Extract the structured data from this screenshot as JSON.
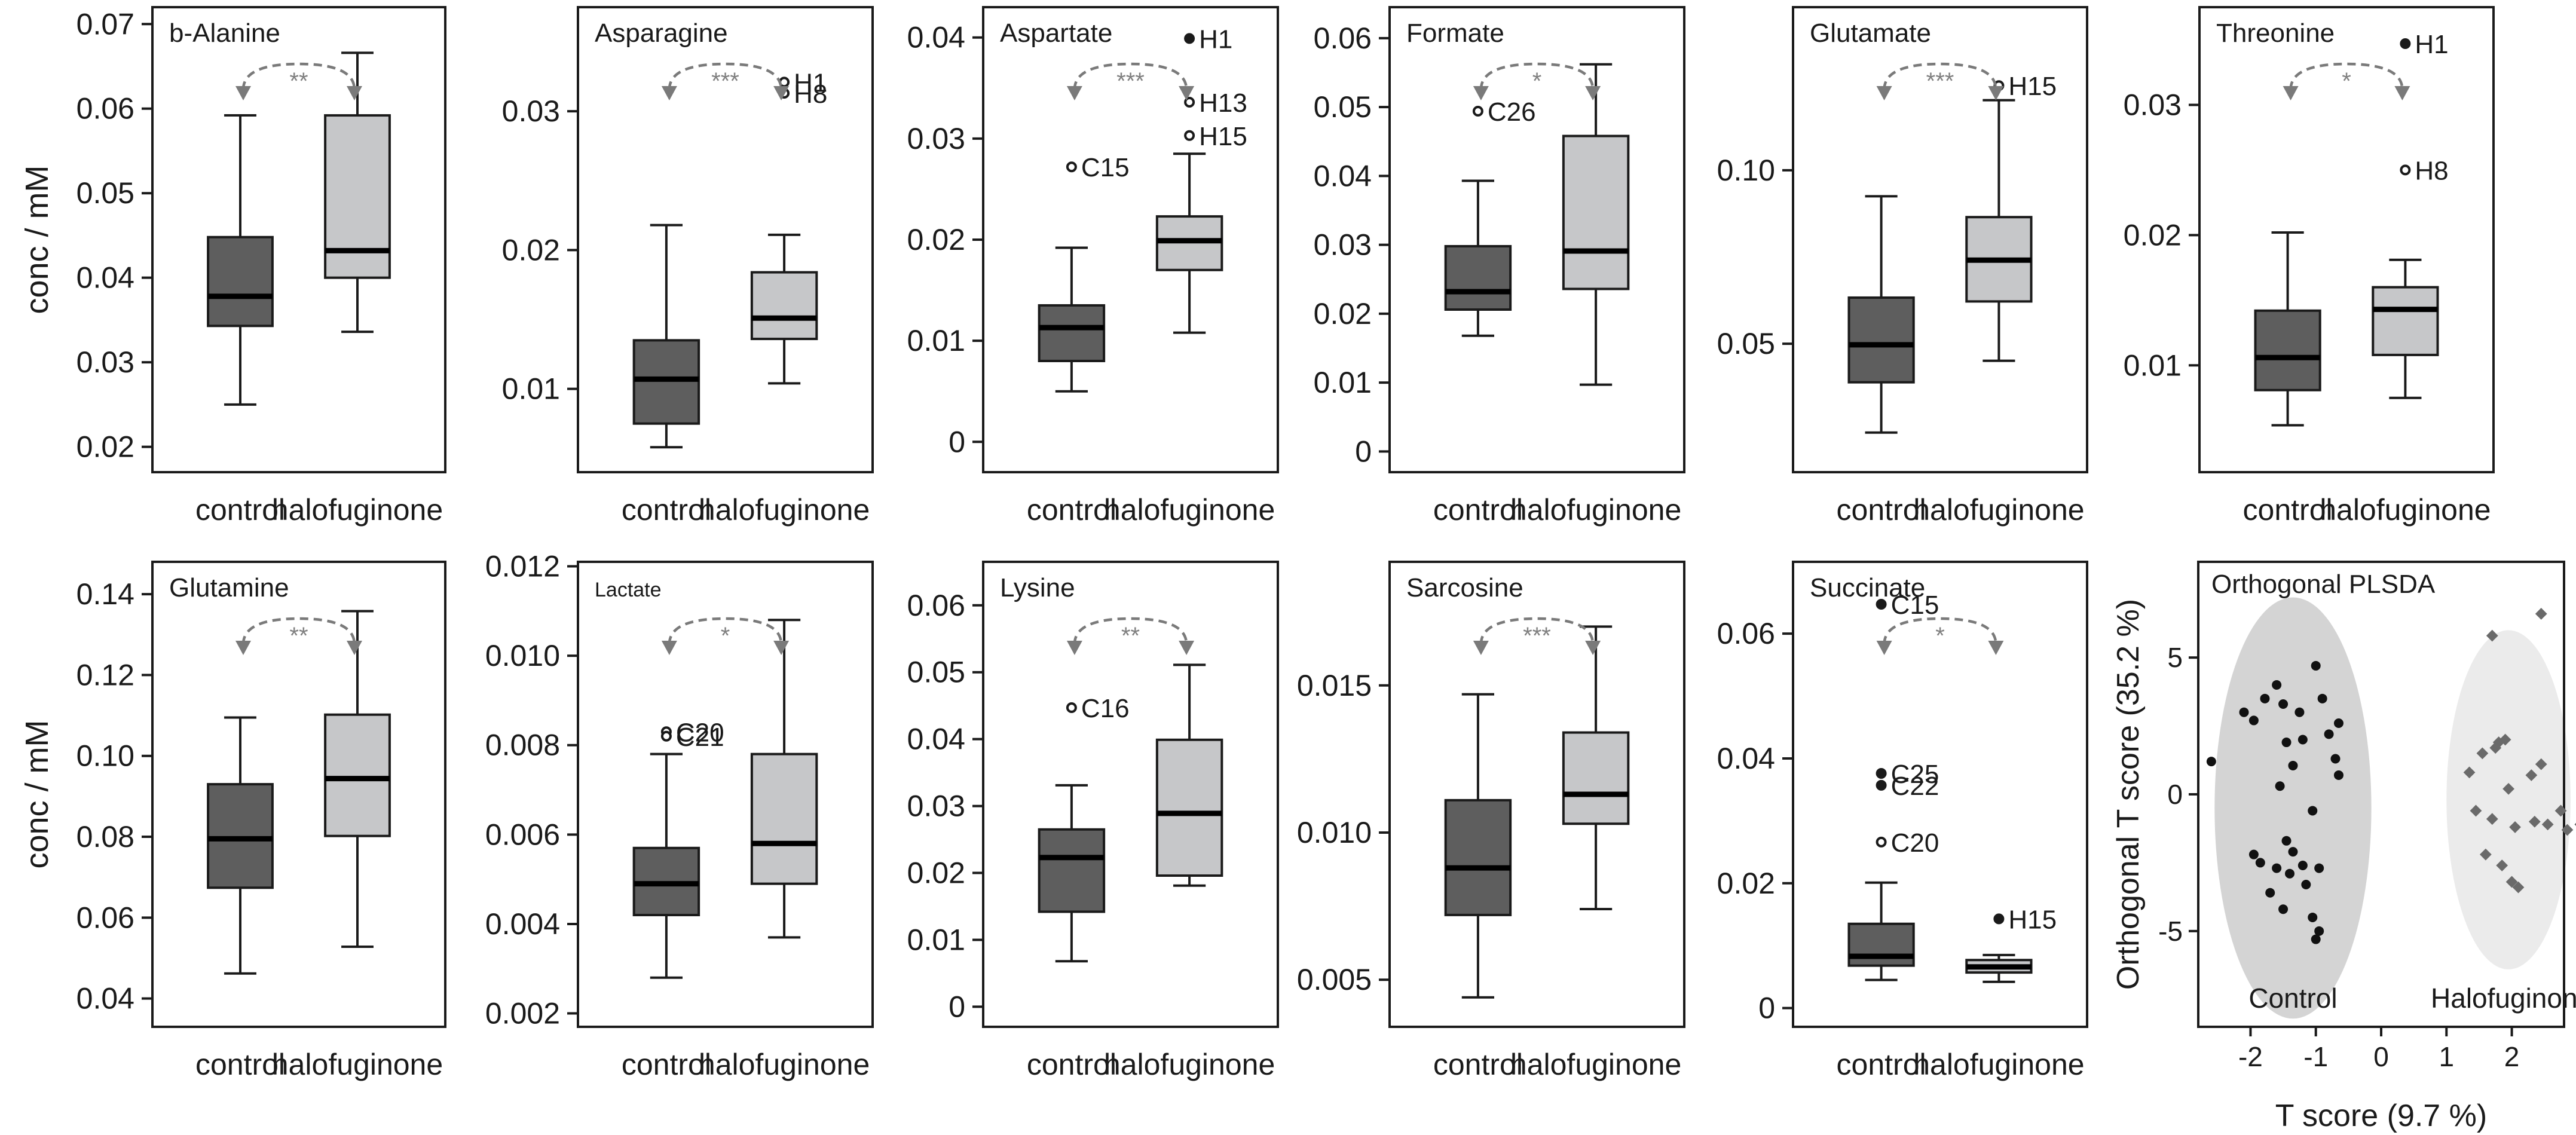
{
  "chart_data": [
    {
      "type": "box",
      "title": "b-Alanine",
      "ylabel": "conc / mM",
      "ylim": [
        0.017,
        0.072
      ],
      "yticks": [
        0.02,
        0.03,
        0.04,
        0.05,
        0.06,
        0.07
      ],
      "ytick_labels": [
        "0.02",
        "0.03",
        "0.04",
        "0.05",
        "0.06",
        "0.07"
      ],
      "categories": [
        "control",
        "halofuginone"
      ],
      "boxes": [
        {
          "min": 0.025,
          "q1": 0.0343,
          "median": 0.0378,
          "q3": 0.0448,
          "max": 0.0592
        },
        {
          "min": 0.0336,
          "q1": 0.04,
          "median": 0.0432,
          "q3": 0.0592,
          "max": 0.0666
        }
      ],
      "outliers": [],
      "significance": "**"
    },
    {
      "type": "box",
      "title": "Asparagine",
      "ylabel": "",
      "ylim": [
        0.004,
        0.0375
      ],
      "yticks": [
        0.01,
        0.02,
        0.03
      ],
      "ytick_labels": [
        "0.01",
        "0.02",
        "0.03"
      ],
      "categories": [
        "control",
        "halofuginone"
      ],
      "boxes": [
        {
          "min": 0.0058,
          "q1": 0.0075,
          "median": 0.0107,
          "q3": 0.0135,
          "max": 0.0218
        },
        {
          "min": 0.0104,
          "q1": 0.0136,
          "median": 0.0151,
          "q3": 0.0184,
          "max": 0.0211
        }
      ],
      "outliers": [
        {
          "group": 1,
          "value": 0.0321,
          "label": "H1"
        },
        {
          "group": 1,
          "value": 0.0313,
          "label": "H8"
        }
      ],
      "significance": "***"
    },
    {
      "type": "box",
      "title": "Aspartate",
      "ylabel": "",
      "ylim": [
        -0.003,
        0.043
      ],
      "yticks": [
        0,
        0.01,
        0.02,
        0.03,
        0.04
      ],
      "ytick_labels": [
        "0",
        "0.01",
        "0.02",
        "0.03",
        "0.04"
      ],
      "categories": [
        "control",
        "halofuginone"
      ],
      "boxes": [
        {
          "min": 0.005,
          "q1": 0.008,
          "median": 0.0113,
          "q3": 0.0135,
          "max": 0.0192
        },
        {
          "min": 0.0108,
          "q1": 0.017,
          "median": 0.0199,
          "q3": 0.0223,
          "max": 0.0285
        }
      ],
      "outliers": [
        {
          "group": 0,
          "value": 0.0272,
          "label": "C15"
        },
        {
          "group": 1,
          "value": 0.0399,
          "label": "H1",
          "filled": true
        },
        {
          "group": 1,
          "value": 0.0336,
          "label": "H13"
        },
        {
          "group": 1,
          "value": 0.0303,
          "label": "H15"
        }
      ],
      "significance": "***"
    },
    {
      "type": "box",
      "title": "Formate",
      "ylabel": "",
      "ylim": [
        -0.003,
        0.0645
      ],
      "yticks": [
        0,
        0.01,
        0.02,
        0.03,
        0.04,
        0.05,
        0.06
      ],
      "ytick_labels": [
        "0",
        "0.01",
        "0.02",
        "0.03",
        "0.04",
        "0.05",
        "0.06"
      ],
      "categories": [
        "control",
        "halofuginone"
      ],
      "boxes": [
        {
          "min": 0.0168,
          "q1": 0.0206,
          "median": 0.0232,
          "q3": 0.0298,
          "max": 0.0393
        },
        {
          "min": 0.0097,
          "q1": 0.0236,
          "median": 0.0291,
          "q3": 0.0458,
          "max": 0.0562
        }
      ],
      "outliers": [
        {
          "group": 0,
          "value": 0.0494,
          "label": "C26"
        }
      ],
      "significance": "*"
    },
    {
      "type": "box",
      "title": "Glutamate",
      "ylabel": "",
      "ylim": [
        0.013,
        0.147
      ],
      "yticks": [
        0.05,
        0.1
      ],
      "ytick_labels": [
        "0.05",
        "0.10"
      ],
      "categories": [
        "control",
        "halofuginone"
      ],
      "boxes": [
        {
          "min": 0.0244,
          "q1": 0.0389,
          "median": 0.0497,
          "q3": 0.0633,
          "max": 0.0925
        },
        {
          "min": 0.0451,
          "q1": 0.0622,
          "median": 0.0741,
          "q3": 0.0865,
          "max": 0.1202
        }
      ],
      "outliers": [
        {
          "group": 1,
          "value": 0.1244,
          "label": "H15"
        }
      ],
      "significance": "***"
    },
    {
      "type": "box",
      "title": "Threonine",
      "ylabel": "",
      "ylim": [
        0.0018,
        0.0375
      ],
      "yticks": [
        0.01,
        0.02,
        0.03
      ],
      "ytick_labels": [
        "0.01",
        "0.02",
        "0.03"
      ],
      "categories": [
        "control",
        "halofuginone"
      ],
      "boxes": [
        {
          "min": 0.0054,
          "q1": 0.0081,
          "median": 0.0106,
          "q3": 0.0142,
          "max": 0.0202
        },
        {
          "min": 0.0075,
          "q1": 0.0108,
          "median": 0.0143,
          "q3": 0.016,
          "max": 0.0181
        }
      ],
      "outliers": [
        {
          "group": 1,
          "value": 0.0347,
          "label": "H1",
          "filled": true
        },
        {
          "group": 1,
          "value": 0.025,
          "label": "H8"
        }
      ],
      "significance": "*"
    },
    {
      "type": "box",
      "title": "Glutamine",
      "ylabel": "conc / mM",
      "ylim": [
        0.033,
        0.148
      ],
      "yticks": [
        0.04,
        0.06,
        0.08,
        0.1,
        0.12,
        0.14
      ],
      "ytick_labels": [
        "0.04",
        "0.06",
        "0.08",
        "0.10",
        "0.12",
        "0.14"
      ],
      "categories": [
        "control",
        "halofuginone"
      ],
      "boxes": [
        {
          "min": 0.0462,
          "q1": 0.0674,
          "median": 0.0795,
          "q3": 0.093,
          "max": 0.1095
        },
        {
          "min": 0.0528,
          "q1": 0.0802,
          "median": 0.0944,
          "q3": 0.1102,
          "max": 0.1358
        }
      ],
      "outliers": [],
      "significance": "**"
    },
    {
      "type": "box",
      "title": "Lactate",
      "ylabel": "",
      "ylim": [
        0.0017,
        0.0121
      ],
      "yticks": [
        0.002,
        0.004,
        0.006,
        0.008,
        0.01,
        0.012
      ],
      "ytick_labels": [
        "0.002",
        "0.004",
        "0.006",
        "0.008",
        "0.010",
        "0.012"
      ],
      "categories": [
        "control",
        "halofuginone"
      ],
      "boxes": [
        {
          "min": 0.0028,
          "q1": 0.0042,
          "median": 0.0049,
          "q3": 0.0057,
          "max": 0.0078
        },
        {
          "min": 0.0037,
          "q1": 0.0049,
          "median": 0.0058,
          "q3": 0.0078,
          "max": 0.0108
        }
      ],
      "outliers": [
        {
          "group": 0,
          "value": 0.0083,
          "label": "C20"
        },
        {
          "group": 0,
          "value": 0.0082,
          "label": "C21"
        }
      ],
      "significance": "*"
    },
    {
      "type": "box",
      "title": "Lysine",
      "ylabel": "",
      "ylim": [
        -0.003,
        0.0665
      ],
      "yticks": [
        0,
        0.01,
        0.02,
        0.03,
        0.04,
        0.05,
        0.06
      ],
      "ytick_labels": [
        "0",
        "0.01",
        "0.02",
        "0.03",
        "0.04",
        "0.05",
        "0.06"
      ],
      "categories": [
        "control",
        "halofuginone"
      ],
      "boxes": [
        {
          "min": 0.0068,
          "q1": 0.0142,
          "median": 0.0223,
          "q3": 0.0265,
          "max": 0.0331
        },
        {
          "min": 0.0181,
          "q1": 0.0196,
          "median": 0.0289,
          "q3": 0.0399,
          "max": 0.0511
        }
      ],
      "outliers": [
        {
          "group": 0,
          "value": 0.0447,
          "label": "C16"
        }
      ],
      "significance": "**"
    },
    {
      "type": "box",
      "title": "Sarcosine",
      "ylabel": "",
      "ylim": [
        0.0034,
        0.0192
      ],
      "yticks": [
        0.005,
        0.01,
        0.015
      ],
      "ytick_labels": [
        "0.005",
        "0.010",
        "0.015"
      ],
      "categories": [
        "control",
        "halofuginone"
      ],
      "boxes": [
        {
          "min": 0.0044,
          "q1": 0.0072,
          "median": 0.0088,
          "q3": 0.0111,
          "max": 0.0147
        },
        {
          "min": 0.0074,
          "q1": 0.0103,
          "median": 0.0113,
          "q3": 0.0134,
          "max": 0.017
        }
      ],
      "outliers": [],
      "significance": "***"
    },
    {
      "type": "box",
      "title": "Succinate",
      "ylabel": "",
      "ylim": [
        -0.003,
        0.0715
      ],
      "yticks": [
        0,
        0.02,
        0.04,
        0.06
      ],
      "ytick_labels": [
        "0",
        "0.02",
        "0.04",
        "0.06"
      ],
      "categories": [
        "control",
        "halofuginone"
      ],
      "boxes": [
        {
          "min": 0.0045,
          "q1": 0.0068,
          "median": 0.0083,
          "q3": 0.0135,
          "max": 0.0201
        },
        {
          "min": 0.0042,
          "q1": 0.0057,
          "median": 0.0066,
          "q3": 0.0077,
          "max": 0.0085
        }
      ],
      "outliers": [
        {
          "group": 0,
          "value": 0.0647,
          "label": "C15",
          "filled": true
        },
        {
          "group": 0,
          "value": 0.0376,
          "label": "C25",
          "filled": true
        },
        {
          "group": 0,
          "value": 0.0357,
          "label": "C22",
          "filled": true
        },
        {
          "group": 0,
          "value": 0.0266,
          "label": "C20"
        },
        {
          "group": 1,
          "value": 0.0143,
          "label": "H15",
          "filled": true
        }
      ],
      "significance": "*"
    },
    {
      "type": "scatter",
      "title": "Orthogonal PLSDA",
      "xlabel": "T score (9.7 %)",
      "ylabel": "Orthogonal T score (35.2 %)",
      "xlim": [
        -2.8,
        2.8
      ],
      "ylim": [
        -8.5,
        8.5
      ],
      "xticks": [
        -2,
        -1,
        0,
        1,
        2
      ],
      "xtick_labels": [
        "-2",
        "-1",
        "0",
        "1",
        "2"
      ],
      "yticks": [
        -5,
        0,
        5
      ],
      "ytick_labels": [
        "-5",
        "0",
        "5"
      ],
      "groups": [
        {
          "name": "Control",
          "ellipse": {
            "cx": -1.35,
            "cy": -0.5,
            "rx": 1.2,
            "ry": 7.7
          },
          "points": [
            [
              -2.6,
              1.2
            ],
            [
              -2.1,
              3.0
            ],
            [
              -1.95,
              2.7
            ],
            [
              -1.78,
              3.5
            ],
            [
              -1.6,
              4.0
            ],
            [
              -1.45,
              1.9
            ],
            [
              -1.55,
              0.3
            ],
            [
              -1.35,
              1.05
            ],
            [
              -1.25,
              3.0
            ],
            [
              -1.5,
              3.3
            ],
            [
              -1.2,
              2.0
            ],
            [
              -1.0,
              4.7
            ],
            [
              -0.9,
              3.5
            ],
            [
              -0.8,
              2.2
            ],
            [
              -0.65,
              2.6
            ],
            [
              -0.7,
              1.3
            ],
            [
              -0.65,
              0.7
            ],
            [
              -1.05,
              -0.6
            ],
            [
              -1.45,
              -1.7
            ],
            [
              -1.35,
              -2.1
            ],
            [
              -1.2,
              -2.6
            ],
            [
              -0.95,
              -2.7
            ],
            [
              -1.15,
              -3.3
            ],
            [
              -1.4,
              -2.9
            ],
            [
              -1.6,
              -2.7
            ],
            [
              -1.85,
              -2.5
            ],
            [
              -1.95,
              -2.2
            ],
            [
              -1.7,
              -3.6
            ],
            [
              -1.5,
              -4.2
            ],
            [
              -1.05,
              -4.5
            ],
            [
              -0.95,
              -5.0
            ],
            [
              -1.0,
              -5.3
            ]
          ]
        },
        {
          "name": "Halofuginone",
          "ellipse": {
            "cx": 1.95,
            "cy": -0.2,
            "rx": 0.95,
            "ry": 6.2
          },
          "points": [
            [
              1.35,
              0.8
            ],
            [
              1.45,
              -0.6
            ],
            [
              1.55,
              1.5
            ],
            [
              1.7,
              5.8
            ],
            [
              1.75,
              1.7
            ],
            [
              1.8,
              1.9
            ],
            [
              1.9,
              2.0
            ],
            [
              1.95,
              0.2
            ],
            [
              1.7,
              -0.9
            ],
            [
              1.6,
              -2.2
            ],
            [
              1.85,
              -2.6
            ],
            [
              2.0,
              -3.2
            ],
            [
              2.1,
              -3.4
            ],
            [
              2.3,
              0.7
            ],
            [
              2.45,
              1.1
            ],
            [
              2.35,
              -1.0
            ],
            [
              2.55,
              -1.1
            ],
            [
              2.75,
              -0.6
            ],
            [
              2.45,
              6.6
            ],
            [
              2.85,
              -1.3
            ],
            [
              3.05,
              -1.1
            ],
            [
              2.05,
              -1.2
            ]
          ]
        }
      ]
    }
  ]
}
